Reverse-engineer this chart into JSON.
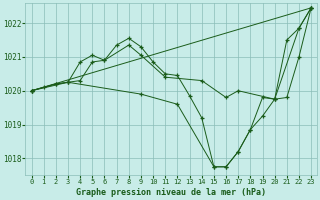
{
  "background_color": "#c8ece8",
  "grid_color": "#8bbdb8",
  "line_color": "#1a5c1a",
  "marker": "+",
  "xlabel": "Graphe pression niveau de la mer (hPa)",
  "xlim": [
    -0.5,
    23.5
  ],
  "ylim": [
    1017.5,
    1022.6
  ],
  "yticks": [
    1018,
    1019,
    1020,
    1021,
    1022
  ],
  "xticks": [
    0,
    1,
    2,
    3,
    4,
    5,
    6,
    7,
    8,
    9,
    10,
    11,
    12,
    13,
    14,
    15,
    16,
    17,
    18,
    19,
    20,
    21,
    22,
    23
  ],
  "lines": [
    {
      "x": [
        0,
        1,
        2,
        3,
        4,
        5,
        6,
        7,
        8,
        9,
        10,
        11,
        12,
        13,
        14,
        15,
        16,
        17,
        18,
        19,
        20,
        21,
        22,
        23
      ],
      "y": [
        1020.0,
        1020.1,
        1020.2,
        1020.25,
        1020.3,
        1020.85,
        1020.9,
        1021.35,
        1021.55,
        1021.3,
        1020.85,
        1020.5,
        1020.45,
        1019.85,
        1019.2,
        1017.75,
        1017.75,
        1018.2,
        1018.85,
        1019.8,
        1019.75,
        1021.5,
        1021.85,
        1022.45
      ]
    },
    {
      "x": [
        0,
        23
      ],
      "y": [
        1020.0,
        1022.45
      ]
    },
    {
      "x": [
        0,
        2,
        3,
        4,
        5,
        6,
        8,
        9,
        11,
        14,
        16,
        17,
        20,
        22,
        23
      ],
      "y": [
        1020.0,
        1020.2,
        1020.25,
        1020.85,
        1021.05,
        1020.9,
        1021.35,
        1021.05,
        1020.4,
        1020.3,
        1019.8,
        1020.0,
        1019.75,
        1021.85,
        1022.45
      ]
    },
    {
      "x": [
        0,
        3,
        9,
        12,
        15,
        16,
        17,
        18,
        19,
        20,
        21,
        22,
        23
      ],
      "y": [
        1020.0,
        1020.25,
        1019.9,
        1019.6,
        1017.75,
        1017.75,
        1018.2,
        1018.85,
        1019.25,
        1019.75,
        1019.8,
        1021.0,
        1022.45
      ]
    }
  ]
}
